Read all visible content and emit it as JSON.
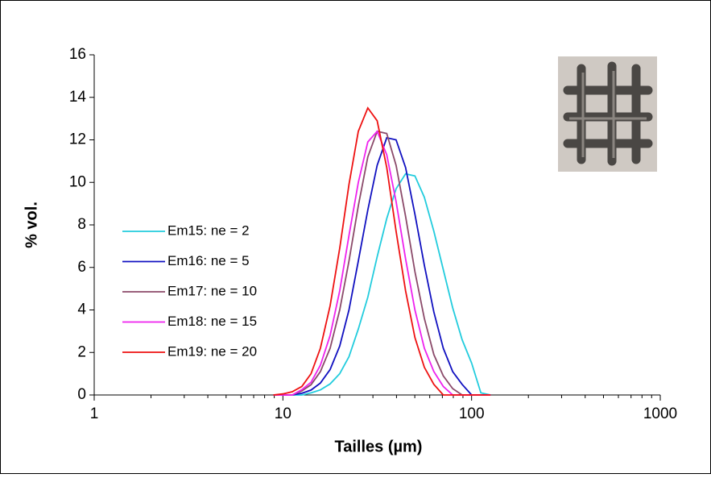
{
  "chart_data": {
    "type": "line",
    "xlabel": "Tailles (µm)",
    "ylabel": "% vol.",
    "x": [
      8.9,
      10,
      11.2,
      12.6,
      14.1,
      15.8,
      17.8,
      20,
      22.4,
      25.1,
      28.2,
      31.6,
      35.5,
      39.8,
      44.7,
      50.1,
      56.2,
      63.1,
      70.8,
      79.4,
      89.1,
      100,
      112,
      126
    ],
    "series": [
      {
        "name": "Em15: ne = 2",
        "color": "#22ccdd",
        "values": [
          0,
          0,
          0,
          0,
          0.1,
          0.24,
          0.52,
          1.0,
          1.8,
          3.1,
          4.6,
          6.5,
          8.3,
          9.7,
          10.4,
          10.3,
          9.3,
          7.7,
          5.9,
          4.1,
          2.6,
          1.5,
          0.1,
          0
        ]
      },
      {
        "name": "Em16: ne = 5",
        "color": "#1010c0",
        "values": [
          0,
          0,
          0,
          0.08,
          0.23,
          0.56,
          1.2,
          2.3,
          4.0,
          6.3,
          8.7,
          10.8,
          12.1,
          12.0,
          10.7,
          8.5,
          6.1,
          3.9,
          2.2,
          1.1,
          0.5,
          0,
          0,
          0
        ]
      },
      {
        "name": "Em17: ne = 10",
        "color": "#8b4a6a",
        "values": [
          0,
          0,
          0,
          0.19,
          0.48,
          1.1,
          2.2,
          4.0,
          6.3,
          8.9,
          11.2,
          12.4,
          12.3,
          10.8,
          8.4,
          5.8,
          3.6,
          1.9,
          0.9,
          0.3,
          0,
          0,
          0,
          0
        ]
      },
      {
        "name": "Em18: ne = 15",
        "color": "#ee22ee",
        "values": [
          0,
          0,
          0,
          0.25,
          0.6,
          1.4,
          2.8,
          4.9,
          7.5,
          10.0,
          11.9,
          12.4,
          11.3,
          9.1,
          6.4,
          4.0,
          2.2,
          1.1,
          0.4,
          0,
          0,
          0,
          0,
          0
        ]
      },
      {
        "name": "Em19: ne = 20",
        "color": "#ee1111",
        "values": [
          0,
          0.05,
          0.15,
          0.4,
          1.0,
          2.2,
          4.2,
          6.9,
          9.9,
          12.4,
          13.5,
          12.9,
          10.7,
          7.7,
          4.9,
          2.7,
          1.3,
          0.5,
          0,
          0,
          0,
          0,
          0,
          0
        ]
      }
    ],
    "xlog": true,
    "xlim": [
      1,
      1000
    ],
    "xticks": [
      1,
      10,
      100,
      1000
    ],
    "ylim": [
      0,
      16
    ],
    "yticks": [
      0,
      2,
      4,
      6,
      8,
      10,
      12,
      14,
      16
    ],
    "grid": false,
    "legend": "left"
  }
}
